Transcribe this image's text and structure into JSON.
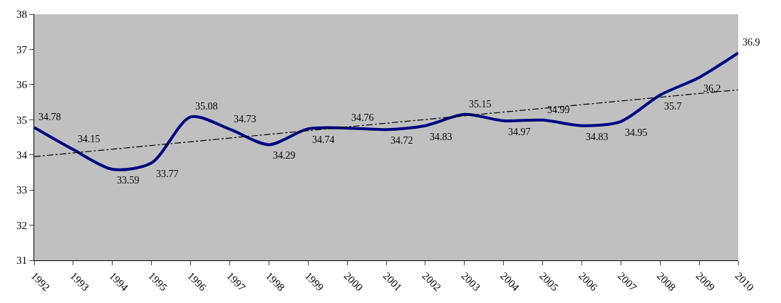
{
  "chart_data": {
    "type": "line",
    "x": [
      1992,
      1993,
      1994,
      1995,
      1996,
      1997,
      1998,
      1999,
      2000,
      2001,
      2002,
      2003,
      2004,
      2005,
      2006,
      2007,
      2008,
      2009,
      2010
    ],
    "series": [
      {
        "color": "#000080",
        "values": [
          34.78,
          34.15,
          33.59,
          33.77,
          35.08,
          34.73,
          34.29,
          34.74,
          34.76,
          34.72,
          34.83,
          35.15,
          34.97,
          34.99,
          34.83,
          34.95,
          35.7,
          36.2,
          36.9
        ],
        "value_labels": [
          "34.78",
          "34.15",
          "33.59",
          "33.77",
          "35.08",
          "34.73",
          "34.29",
          "34.74",
          "34.76",
          "34.72",
          "34.83",
          "35.15",
          "34.97",
          "34.99",
          "34.83",
          "34.95",
          "35.7",
          "36.2",
          "36.9"
        ]
      },
      {
        "type": "line",
        "x": [
          1992,
          2010
        ],
        "values": [
          33.95,
          35.85
        ],
        "color": "#000000",
        "line_style": "dashed"
      }
    ],
    "xlim": [
      1992,
      2010
    ],
    "xticks": [
      1992,
      1993,
      1994,
      1995,
      1996,
      1997,
      1998,
      1999,
      2000,
      2001,
      2002,
      2003,
      2004,
      2005,
      2006,
      2007,
      2008,
      2009,
      2010
    ],
    "ylim": [
      31,
      38
    ],
    "yticks": [
      31,
      32,
      33,
      34,
      35,
      36,
      37,
      38
    ],
    "grid": false,
    "legend": false,
    "marker": "none"
  }
}
